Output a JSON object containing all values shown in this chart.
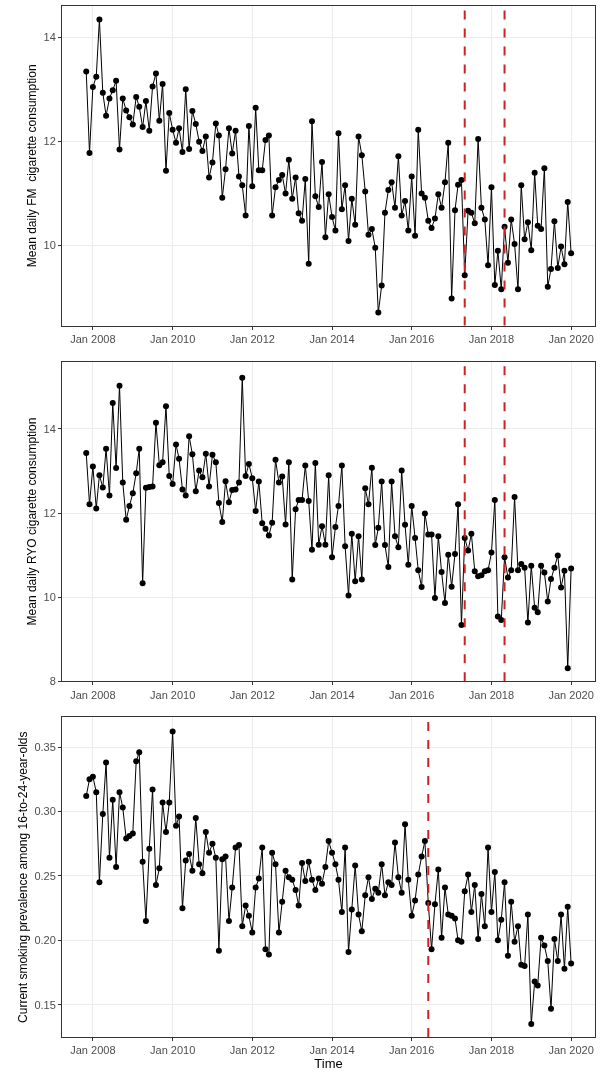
{
  "chart_data": [
    {
      "type": "line",
      "ylabel": "Mean daily FM  cigarette consumption",
      "marker": "circle",
      "line_style": "solid",
      "grid": true,
      "x": [
        "2007-11",
        "2007-12",
        "2008-01",
        "2008-02",
        "2008-03",
        "2008-04",
        "2008-05",
        "2008-06",
        "2008-07",
        "2008-08",
        "2008-09",
        "2008-10",
        "2008-11",
        "2008-12",
        "2009-01",
        "2009-02",
        "2009-03",
        "2009-04",
        "2009-05",
        "2009-06",
        "2009-07",
        "2009-08",
        "2009-09",
        "2009-10",
        "2009-11",
        "2009-12",
        "2010-01",
        "2010-02",
        "2010-03",
        "2010-04",
        "2010-05",
        "2010-06",
        "2010-07",
        "2010-08",
        "2010-09",
        "2010-10",
        "2010-11",
        "2010-12",
        "2011-01",
        "2011-02",
        "2011-03",
        "2011-04",
        "2011-05",
        "2011-06",
        "2011-07",
        "2011-08",
        "2011-09",
        "2011-10",
        "2011-11",
        "2011-12",
        "2012-01",
        "2012-02",
        "2012-03",
        "2012-04",
        "2012-05",
        "2012-06",
        "2012-07",
        "2012-08",
        "2012-09",
        "2012-10",
        "2012-11",
        "2012-12",
        "2013-01",
        "2013-02",
        "2013-03",
        "2013-04",
        "2013-05",
        "2013-06",
        "2013-07",
        "2013-08",
        "2013-09",
        "2013-10",
        "2013-11",
        "2013-12",
        "2014-01",
        "2014-02",
        "2014-03",
        "2014-04",
        "2014-05",
        "2014-06",
        "2014-07",
        "2014-08",
        "2014-09",
        "2014-10",
        "2014-11",
        "2014-12",
        "2015-01",
        "2015-02",
        "2015-03",
        "2015-04",
        "2015-05",
        "2015-06",
        "2015-07",
        "2015-08",
        "2015-09",
        "2015-10",
        "2015-11",
        "2015-12",
        "2016-01",
        "2016-02",
        "2016-03",
        "2016-04",
        "2016-05",
        "2016-06",
        "2016-07",
        "2016-08",
        "2016-09",
        "2016-10",
        "2016-11",
        "2016-12",
        "2017-01",
        "2017-02",
        "2017-03",
        "2017-04",
        "2017-05",
        "2017-06",
        "2017-07",
        "2017-08",
        "2017-09",
        "2017-10",
        "2017-11",
        "2017-12",
        "2018-01",
        "2018-02",
        "2018-03",
        "2018-04",
        "2018-05",
        "2018-06",
        "2018-07",
        "2018-08",
        "2018-09",
        "2018-10",
        "2018-11",
        "2018-12",
        "2019-01",
        "2019-02",
        "2019-03",
        "2019-04",
        "2019-05",
        "2019-06",
        "2019-07",
        "2019-08",
        "2019-09",
        "2019-10",
        "2019-11",
        "2019-12",
        "2020-01"
      ],
      "series": [
        {
          "color": "#000000",
          "values": [
            13.34,
            11.77,
            13.04,
            13.24,
            14.34,
            12.93,
            12.49,
            12.82,
            12.98,
            13.16,
            11.84,
            12.82,
            12.59,
            12.46,
            12.32,
            12.85,
            12.66,
            12.27,
            12.77,
            12.2,
            13.05,
            13.3,
            12.39,
            13.1,
            11.43,
            12.54,
            12.22,
            11.97,
            12.25,
            11.79,
            13.0,
            11.85,
            12.58,
            12.33,
            11.99,
            11.81,
            12.09,
            11.3,
            11.59,
            12.34,
            12.11,
            10.91,
            11.46,
            12.25,
            11.76,
            12.2,
            11.32,
            11.15,
            10.57,
            12.29,
            11.13,
            12.64,
            11.44,
            11.44,
            12.02,
            12.11,
            10.57,
            11.11,
            11.25,
            11.35,
            10.99,
            11.64,
            10.89,
            11.3,
            10.61,
            10.47,
            11.27,
            9.64,
            12.38,
            10.94,
            10.73,
            11.6,
            10.15,
            10.98,
            10.54,
            10.28,
            12.15,
            10.69,
            11.15,
            10.08,
            10.89,
            10.39,
            12.09,
            11.73,
            11.03,
            10.2,
            10.31,
            9.95,
            8.7,
            9.22,
            10.62,
            11.06,
            11.21,
            10.72,
            11.71,
            10.57,
            10.85,
            10.28,
            11.32,
            10.18,
            12.22,
            10.99,
            10.91,
            10.47,
            10.33,
            10.51,
            10.98,
            10.72,
            11.21,
            11.97,
            8.97,
            10.67,
            11.16,
            11.25,
            9.42,
            10.66,
            10.62,
            10.42,
            12.04,
            10.72,
            10.49,
            9.61,
            11.11,
            9.23,
            9.89,
            9.15,
            10.35,
            9.66,
            10.49,
            10.02,
            9.15,
            11.15,
            10.11,
            10.44,
            9.9,
            11.39,
            10.37,
            10.31,
            11.48,
            9.2,
            9.54,
            10.46,
            9.56,
            9.97,
            9.63,
            10.83,
            9.84
          ]
        }
      ],
      "xlim": [
        "2007-03-24",
        "2020-08-07"
      ],
      "ylim": [
        8.45,
        14.6
      ],
      "xticks": [
        {
          "value": "2008-01",
          "label": "Jan 2008"
        },
        {
          "value": "2010-01",
          "label": "Jan 2010"
        },
        {
          "value": "2012-01",
          "label": "Jan 2012"
        },
        {
          "value": "2014-01",
          "label": "Jan 2014"
        },
        {
          "value": "2016-01",
          "label": "Jan 2016"
        },
        {
          "value": "2018-01",
          "label": "Jan 2018"
        },
        {
          "value": "2020-01",
          "label": "Jan 2020"
        }
      ],
      "yticks": [
        10,
        12,
        14
      ],
      "ref_lines": [
        {
          "axis": "x",
          "value": "2017-05",
          "color": "#cc2222",
          "line_style": "dashed"
        },
        {
          "axis": "x",
          "value": "2018-05",
          "color": "#cc2222",
          "line_style": "dashed"
        }
      ]
    },
    {
      "type": "line",
      "ylabel": "Mean daily RYO cigarette consumption",
      "marker": "circle",
      "line_style": "solid",
      "grid": true,
      "x": [
        "2007-11",
        "2007-12",
        "2008-01",
        "2008-02",
        "2008-03",
        "2008-04",
        "2008-05",
        "2008-06",
        "2008-07",
        "2008-08",
        "2008-09",
        "2008-10",
        "2008-11",
        "2008-12",
        "2009-01",
        "2009-02",
        "2009-03",
        "2009-04",
        "2009-05",
        "2009-06",
        "2009-07",
        "2009-08",
        "2009-09",
        "2009-10",
        "2009-11",
        "2009-12",
        "2010-01",
        "2010-02",
        "2010-03",
        "2010-04",
        "2010-05",
        "2010-06",
        "2010-07",
        "2010-08",
        "2010-09",
        "2010-10",
        "2010-11",
        "2010-12",
        "2011-01",
        "2011-02",
        "2011-03",
        "2011-04",
        "2011-05",
        "2011-06",
        "2011-07",
        "2011-08",
        "2011-09",
        "2011-10",
        "2011-11",
        "2011-12",
        "2012-01",
        "2012-02",
        "2012-03",
        "2012-04",
        "2012-05",
        "2012-06",
        "2012-07",
        "2012-08",
        "2012-09",
        "2012-10",
        "2012-11",
        "2012-12",
        "2013-01",
        "2013-02",
        "2013-03",
        "2013-04",
        "2013-05",
        "2013-06",
        "2013-07",
        "2013-08",
        "2013-09",
        "2013-10",
        "2013-11",
        "2013-12",
        "2014-01",
        "2014-02",
        "2014-03",
        "2014-04",
        "2014-05",
        "2014-06",
        "2014-07",
        "2014-08",
        "2014-09",
        "2014-10",
        "2014-11",
        "2014-12",
        "2015-01",
        "2015-02",
        "2015-03",
        "2015-04",
        "2015-05",
        "2015-06",
        "2015-07",
        "2015-08",
        "2015-09",
        "2015-10",
        "2015-11",
        "2015-12",
        "2016-01",
        "2016-02",
        "2016-03",
        "2016-04",
        "2016-05",
        "2016-06",
        "2016-07",
        "2016-08",
        "2016-09",
        "2016-10",
        "2016-11",
        "2016-12",
        "2017-01",
        "2017-02",
        "2017-03",
        "2017-04",
        "2017-05",
        "2017-06",
        "2017-07",
        "2017-08",
        "2017-09",
        "2017-10",
        "2017-11",
        "2017-12",
        "2018-01",
        "2018-02",
        "2018-03",
        "2018-04",
        "2018-05",
        "2018-06",
        "2018-07",
        "2018-08",
        "2018-09",
        "2018-10",
        "2018-11",
        "2018-12",
        "2019-01",
        "2019-02",
        "2019-03",
        "2019-04",
        "2019-05",
        "2019-06",
        "2019-07",
        "2019-08",
        "2019-09",
        "2019-10",
        "2019-11",
        "2019-12",
        "2020-01"
      ],
      "series": [
        {
          "color": "#000000",
          "values": [
            13.43,
            12.21,
            13.11,
            12.11,
            12.9,
            12.61,
            13.53,
            12.42,
            14.62,
            13.07,
            15.03,
            12.73,
            11.84,
            12.17,
            12.47,
            12.95,
            13.53,
            10.33,
            12.6,
            12.62,
            12.63,
            14.15,
            13.14,
            13.21,
            14.54,
            12.88,
            12.69,
            13.63,
            13.29,
            12.56,
            12.42,
            13.83,
            13.4,
            12.52,
            13.01,
            12.85,
            13.41,
            12.63,
            13.39,
            13.21,
            12.24,
            11.79,
            12.76,
            12.26,
            12.55,
            12.56,
            12.73,
            15.22,
            12.88,
            13.17,
            12.83,
            12.05,
            12.75,
            11.76,
            11.63,
            11.47,
            11.77,
            13.27,
            12.73,
            12.87,
            11.73,
            13.21,
            10.42,
            12.09,
            12.31,
            12.31,
            13.13,
            12.29,
            11.13,
            13.19,
            11.25,
            11.69,
            11.25,
            12.9,
            10.95,
            11.67,
            12.17,
            13.13,
            11.21,
            10.04,
            11.51,
            10.38,
            11.45,
            10.42,
            12.59,
            12.21,
            13.08,
            11.24,
            11.65,
            12.75,
            11.24,
            10.72,
            12.75,
            11.45,
            11.19,
            13.01,
            11.72,
            10.77,
            12.17,
            11.41,
            10.64,
            10.24,
            11.99,
            11.49,
            11.49,
            9.98,
            11.45,
            10.6,
            9.86,
            11.01,
            10.25,
            11.03,
            12.21,
            9.34,
            11.41,
            11.11,
            11.51,
            10.62,
            10.5,
            10.52,
            10.62,
            10.64,
            11.06,
            12.31,
            9.54,
            9.46,
            10.95,
            10.47,
            10.64,
            12.38,
            10.64,
            10.79,
            10.7,
            9.4,
            10.75,
            9.75,
            9.64,
            10.75,
            10.59,
            9.9,
            10.43,
            10.7,
            10.99,
            10.23,
            10.63,
            8.31,
            10.68
          ]
        }
      ],
      "xlim": [
        "2007-03-24",
        "2020-08-07"
      ],
      "ylim": [
        8.0,
        15.6
      ],
      "xticks": [
        {
          "value": "2008-01",
          "label": "Jan 2008"
        },
        {
          "value": "2010-01",
          "label": "Jan 2010"
        },
        {
          "value": "2012-01",
          "label": "Jan 2012"
        },
        {
          "value": "2014-01",
          "label": "Jan 2014"
        },
        {
          "value": "2016-01",
          "label": "Jan 2016"
        },
        {
          "value": "2018-01",
          "label": "Jan 2018"
        },
        {
          "value": "2020-01",
          "label": "Jan 2020"
        }
      ],
      "yticks": [
        8,
        10,
        12,
        14
      ],
      "ref_lines": [
        {
          "axis": "x",
          "value": "2017-05",
          "color": "#cc2222",
          "line_style": "dashed"
        },
        {
          "axis": "x",
          "value": "2018-05",
          "color": "#cc2222",
          "line_style": "dashed"
        }
      ]
    },
    {
      "type": "line",
      "xlabel": "Time",
      "ylabel": "Current smoking prevalence among 16-to-24-year-olds",
      "marker": "circle",
      "line_style": "solid",
      "grid": true,
      "x": [
        "2007-11",
        "2007-12",
        "2008-01",
        "2008-02",
        "2008-03",
        "2008-04",
        "2008-05",
        "2008-06",
        "2008-07",
        "2008-08",
        "2008-09",
        "2008-10",
        "2008-11",
        "2008-12",
        "2009-01",
        "2009-02",
        "2009-03",
        "2009-04",
        "2009-05",
        "2009-06",
        "2009-07",
        "2009-08",
        "2009-09",
        "2009-10",
        "2009-11",
        "2009-12",
        "2010-01",
        "2010-02",
        "2010-03",
        "2010-04",
        "2010-05",
        "2010-06",
        "2010-07",
        "2010-08",
        "2010-09",
        "2010-10",
        "2010-11",
        "2010-12",
        "2011-01",
        "2011-02",
        "2011-03",
        "2011-04",
        "2011-05",
        "2011-06",
        "2011-07",
        "2011-08",
        "2011-09",
        "2011-10",
        "2011-11",
        "2011-12",
        "2012-01",
        "2012-02",
        "2012-03",
        "2012-04",
        "2012-05",
        "2012-06",
        "2012-07",
        "2012-08",
        "2012-09",
        "2012-10",
        "2012-11",
        "2012-12",
        "2013-01",
        "2013-02",
        "2013-03",
        "2013-04",
        "2013-05",
        "2013-06",
        "2013-07",
        "2013-08",
        "2013-09",
        "2013-10",
        "2013-11",
        "2013-12",
        "2014-01",
        "2014-02",
        "2014-03",
        "2014-04",
        "2014-05",
        "2014-06",
        "2014-07",
        "2014-08",
        "2014-09",
        "2014-10",
        "2014-11",
        "2014-12",
        "2015-01",
        "2015-02",
        "2015-03",
        "2015-04",
        "2015-05",
        "2015-06",
        "2015-07",
        "2015-08",
        "2015-09",
        "2015-10",
        "2015-11",
        "2015-12",
        "2016-01",
        "2016-02",
        "2016-03",
        "2016-04",
        "2016-05",
        "2016-06",
        "2016-07",
        "2016-08",
        "2016-09",
        "2016-10",
        "2016-11",
        "2016-12",
        "2017-01",
        "2017-02",
        "2017-03",
        "2017-04",
        "2017-05",
        "2017-06",
        "2017-07",
        "2017-08",
        "2017-09",
        "2017-10",
        "2017-11",
        "2017-12",
        "2018-01",
        "2018-02",
        "2018-03",
        "2018-04",
        "2018-05",
        "2018-06",
        "2018-07",
        "2018-08",
        "2018-09",
        "2018-10",
        "2018-11",
        "2018-12",
        "2019-01",
        "2019-02",
        "2019-03",
        "2019-04",
        "2019-05",
        "2019-06",
        "2019-07",
        "2019-08",
        "2019-09",
        "2019-10",
        "2019-11",
        "2019-12",
        "2020-01"
      ],
      "series": [
        {
          "color": "#000000",
          "values": [
            0.312,
            0.325,
            0.327,
            0.315,
            0.245,
            0.298,
            0.338,
            0.264,
            0.309,
            0.257,
            0.315,
            0.303,
            0.279,
            0.281,
            0.283,
            0.339,
            0.346,
            0.261,
            0.215,
            0.271,
            0.317,
            0.243,
            0.256,
            0.307,
            0.284,
            0.307,
            0.362,
            0.289,
            0.296,
            0.225,
            0.262,
            0.267,
            0.254,
            0.295,
            0.259,
            0.252,
            0.284,
            0.268,
            0.275,
            0.264,
            0.192,
            0.263,
            0.265,
            0.215,
            0.241,
            0.272,
            0.274,
            0.211,
            0.227,
            0.219,
            0.206,
            0.241,
            0.248,
            0.272,
            0.193,
            0.189,
            0.268,
            0.259,
            0.206,
            0.23,
            0.254,
            0.249,
            0.247,
            0.239,
            0.227,
            0.26,
            0.246,
            0.261,
            0.247,
            0.239,
            0.248,
            0.244,
            0.257,
            0.277,
            0.268,
            0.259,
            0.247,
            0.222,
            0.272,
            0.191,
            0.224,
            0.258,
            0.22,
            0.207,
            0.235,
            0.249,
            0.232,
            0.24,
            0.237,
            0.259,
            0.235,
            0.245,
            0.243,
            0.276,
            0.249,
            0.237,
            0.29,
            0.247,
            0.219,
            0.231,
            0.251,
            0.265,
            0.277,
            0.229,
            0.193,
            0.228,
            0.255,
            0.202,
            0.241,
            0.22,
            0.219,
            0.217,
            0.2,
            0.199,
            0.238,
            0.251,
            0.222,
            0.243,
            0.201,
            0.236,
            0.211,
            0.272,
            0.222,
            0.253,
            0.2,
            0.216,
            0.245,
            0.188,
            0.23,
            0.199,
            0.211,
            0.181,
            0.18,
            0.22,
            0.135,
            0.168,
            0.165,
            0.202,
            0.196,
            0.184,
            0.147,
            0.201,
            0.184,
            0.22,
            0.178,
            0.226,
            0.182
          ]
        }
      ],
      "xlim": [
        "2007-03-24",
        "2020-08-07"
      ],
      "ylim": [
        0.125,
        0.373
      ],
      "xticks": [
        {
          "value": "2008-01",
          "label": "Jan 2008"
        },
        {
          "value": "2010-01",
          "label": "Jan 2010"
        },
        {
          "value": "2012-01",
          "label": "Jan 2012"
        },
        {
          "value": "2014-01",
          "label": "Jan 2014"
        },
        {
          "value": "2016-01",
          "label": "Jan 2016"
        },
        {
          "value": "2018-01",
          "label": "Jan 2018"
        },
        {
          "value": "2020-01",
          "label": "Jan 2020"
        }
      ],
      "yticks": [
        0.15,
        {
          "value": 0.2,
          "label": "0.20"
        },
        0.25,
        {
          "value": 0.3,
          "label": "0.30"
        },
        0.35
      ],
      "ref_lines": [
        {
          "axis": "x",
          "value": "2016-06",
          "color": "#cc2222",
          "line_style": "dashed"
        }
      ]
    }
  ]
}
